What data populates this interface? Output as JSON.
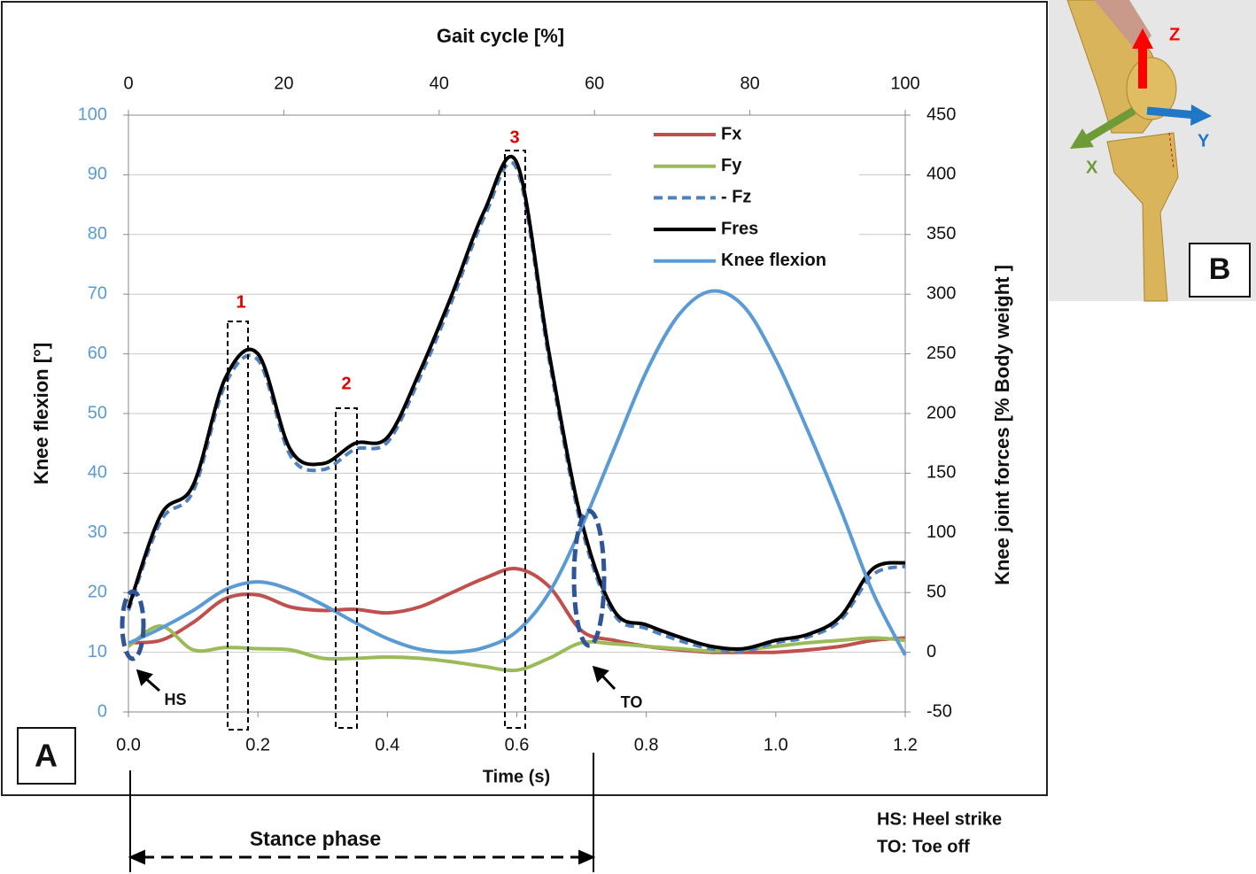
{
  "chart_data": {
    "type": "line",
    "xlabel": "Time (s)",
    "x2label": "Gait cycle [%]",
    "ylabel": "Knee flexion [°]",
    "y2label": "Knee joint forces [% Body weight ]",
    "x": [
      0,
      0.05,
      0.1,
      0.15,
      0.2,
      0.25,
      0.3,
      0.35,
      0.4,
      0.45,
      0.5,
      0.55,
      0.6,
      0.65,
      0.7,
      0.75,
      0.8,
      0.85,
      0.9,
      0.95,
      1.0,
      1.05,
      1.1,
      1.15,
      1.2
    ],
    "xlim": [
      0,
      1.2
    ],
    "xticks": [
      {
        "value": 0,
        "label": "0.0"
      },
      0.2,
      0.4,
      0.6,
      0.8,
      {
        "value": 1,
        "label": "1.0"
      },
      1.2
    ],
    "x2lim": [
      0,
      100
    ],
    "x2ticks": [
      0,
      20,
      40,
      60,
      80,
      100
    ],
    "ylim": [
      0,
      100
    ],
    "yticks": [
      0,
      10,
      20,
      30,
      40,
      50,
      60,
      70,
      80,
      90,
      100
    ],
    "y2lim": [
      -50,
      450
    ],
    "y2ticks": [
      -50,
      0,
      50,
      100,
      150,
      200,
      250,
      300,
      350,
      400,
      450
    ],
    "grid": true,
    "legend": "upper-right",
    "series": [
      {
        "name": "Fx",
        "color": "#c0504d",
        "axis": "y2",
        "values": [
          8,
          10,
          25,
          45,
          48,
          38,
          35,
          36,
          33,
          38,
          50,
          62,
          70,
          55,
          18,
          10,
          5,
          2,
          0,
          0,
          0,
          2,
          5,
          10,
          12
        ]
      },
      {
        "name": "Fy",
        "color": "#9bbb59",
        "axis": "y2",
        "values": [
          5,
          22,
          2,
          4,
          3,
          2,
          -5,
          -5,
          -4,
          -5,
          -8,
          -12,
          -15,
          -5,
          8,
          7,
          5,
          3,
          1,
          2,
          5,
          8,
          10,
          12,
          10
        ]
      },
      {
        "name": "- Fz",
        "color": "#4f81bd",
        "axis": "y2",
        "dashed": true,
        "values": [
          35,
          110,
          135,
          225,
          245,
          165,
          153,
          170,
          176,
          230,
          295,
          365,
          405,
          245,
          105,
          32,
          20,
          10,
          3,
          1,
          8,
          13,
          27,
          65,
          72
        ]
      },
      {
        "name": "Fres",
        "color": "#000000",
        "axis": "y2",
        "values": [
          37,
          115,
          140,
          230,
          250,
          170,
          158,
          175,
          180,
          235,
          300,
          370,
          410,
          250,
          110,
          35,
          23,
          13,
          5,
          3,
          10,
          15,
          30,
          70,
          75
        ]
      },
      {
        "name": "Knee flexion",
        "color": "#5b9bd5",
        "axis": "y",
        "values": [
          11.5,
          14,
          17,
          20.5,
          21.8,
          20.5,
          18,
          15,
          12.3,
          10.5,
          10,
          10.8,
          13.5,
          20,
          31,
          44,
          57,
          66.5,
          70.5,
          68,
          59,
          47,
          34,
          20,
          9.5
        ]
      }
    ],
    "annotations": {
      "peaks": [
        "1",
        "2",
        "3"
      ],
      "hs": "HS",
      "to": "TO",
      "panel_a": "A",
      "panel_b": "B",
      "axis_names": [
        "Z",
        "Y",
        "X"
      ],
      "stance": "Stance phase",
      "notes": [
        "HS: Heel strike",
        "TO: Toe off"
      ]
    }
  }
}
